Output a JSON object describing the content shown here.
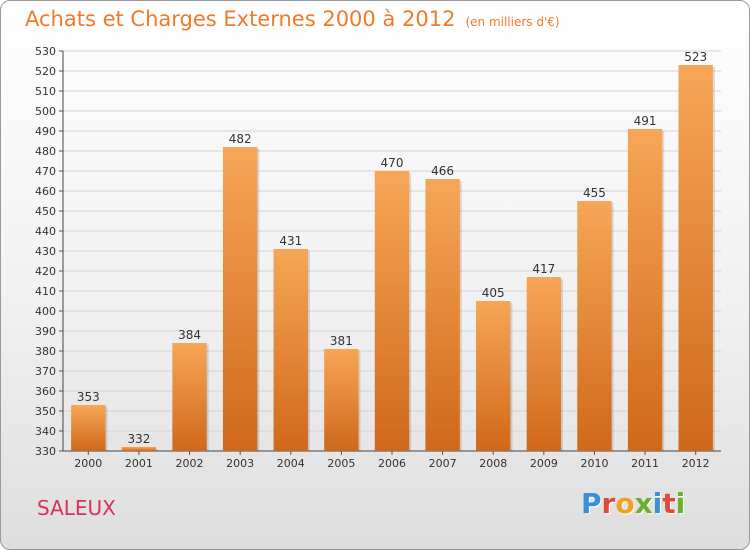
{
  "header": {
    "title": "Achats et Charges Externes 2000 à 2012",
    "unit": "(en milliers d'€)"
  },
  "footer": {
    "city": "SALEUX",
    "logo_letters": [
      {
        "ch": "P",
        "color": "#3a8fd6"
      },
      {
        "ch": "r",
        "color": "#e04a3a"
      },
      {
        "ch": "o",
        "color": "#f0a020"
      },
      {
        "ch": "x",
        "color": "#6ab02a"
      },
      {
        "ch": "i",
        "color": "#3a8fd6"
      },
      {
        "ch": "t",
        "color": "#e04a3a"
      },
      {
        "ch": "i",
        "color": "#6ab02a"
      }
    ]
  },
  "colors": {
    "bar_top": "#f7a657",
    "bar_bottom": "#d0681a",
    "title": "#f07a2a"
  },
  "chart_data": {
    "type": "bar",
    "categories": [
      "2000",
      "2001",
      "2002",
      "2003",
      "2004",
      "2005",
      "2006",
      "2007",
      "2008",
      "2009",
      "2010",
      "2011",
      "2012"
    ],
    "values": [
      353,
      332,
      384,
      482,
      431,
      381,
      470,
      466,
      405,
      417,
      455,
      491,
      523
    ],
    "ylim": [
      330,
      530
    ],
    "ytick_step": 10,
    "grid": true,
    "data_labels": true
  }
}
